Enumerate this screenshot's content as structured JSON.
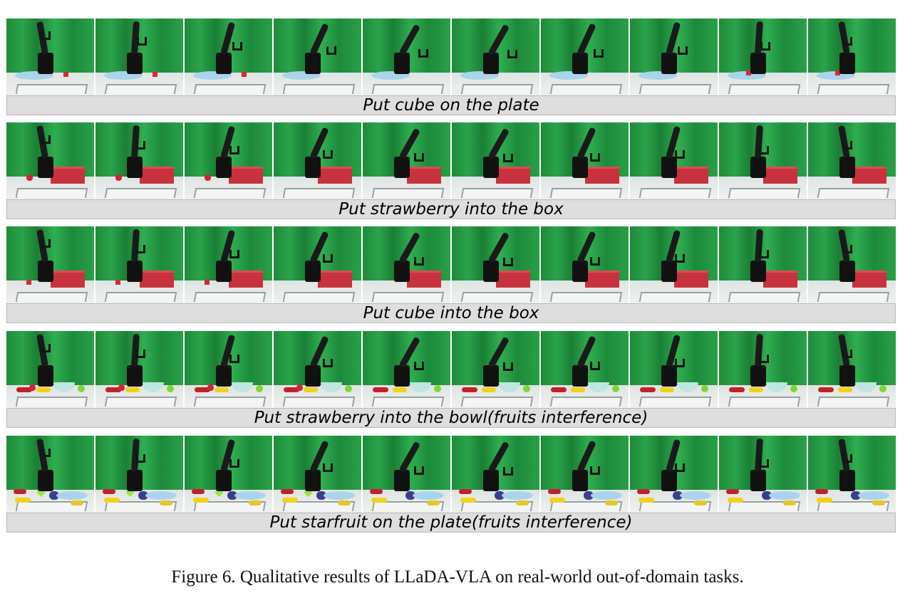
{
  "figure": {
    "caption": "Figure 6. Qualitative results of LLaDA-VLA on real-world out-of-domain tasks."
  },
  "colors": {
    "green_screen": "#2aa34a",
    "caption_bar": "#dedede",
    "caption_border": "#b9b9b9",
    "box_red": "#c8323e",
    "plate_blue": "#a9d4ec"
  },
  "tasks": [
    {
      "caption": "Put cube on the plate",
      "scene": "plate-cube",
      "frames": 10
    },
    {
      "caption": "Put strawberry into the box",
      "scene": "box-strawberry",
      "frames": 10
    },
    {
      "caption": "Put cube into the box",
      "scene": "box-cube",
      "frames": 10
    },
    {
      "caption": "Put strawberry into the bowl(fruits interference)",
      "scene": "bowl-fruits",
      "frames": 10
    },
    {
      "caption": "Put starfruit on the plate(fruits interference)",
      "scene": "plate-fruits",
      "frames": 10
    }
  ]
}
